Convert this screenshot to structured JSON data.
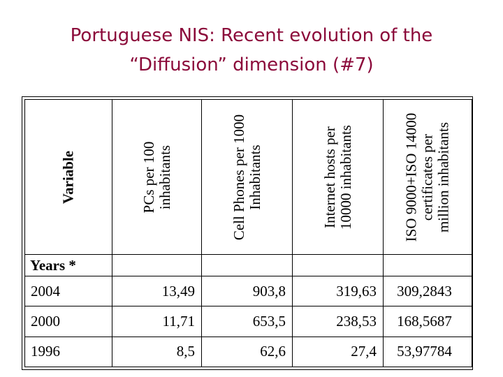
{
  "title": {
    "line1": "Portuguese NIS: Recent evolution of the",
    "line2": "“Diffusion” dimension (#7)"
  },
  "table": {
    "header_label": "Variable",
    "years_label": "Years *",
    "columns": [
      {
        "lines": [
          "PCs per 100",
          "inhabitants"
        ]
      },
      {
        "lines": [
          "Cell Phones per 1000",
          "Inhabitants"
        ]
      },
      {
        "lines": [
          "Internet hosts per",
          "10000 inhabitants"
        ]
      },
      {
        "lines": [
          "ISO 9000+ISO 14000",
          "certificates per",
          "million inhabitants"
        ]
      }
    ],
    "rows": [
      {
        "year": "2004",
        "values": [
          "13,49",
          "903,8",
          "319,63",
          "309,2843"
        ]
      },
      {
        "year": "2000",
        "values": [
          "11,71",
          "653,5",
          "238,53",
          "168,5687"
        ]
      },
      {
        "year": "1996",
        "values": [
          "8,5",
          "62,6",
          "27,4",
          "53,97784"
        ]
      }
    ]
  }
}
